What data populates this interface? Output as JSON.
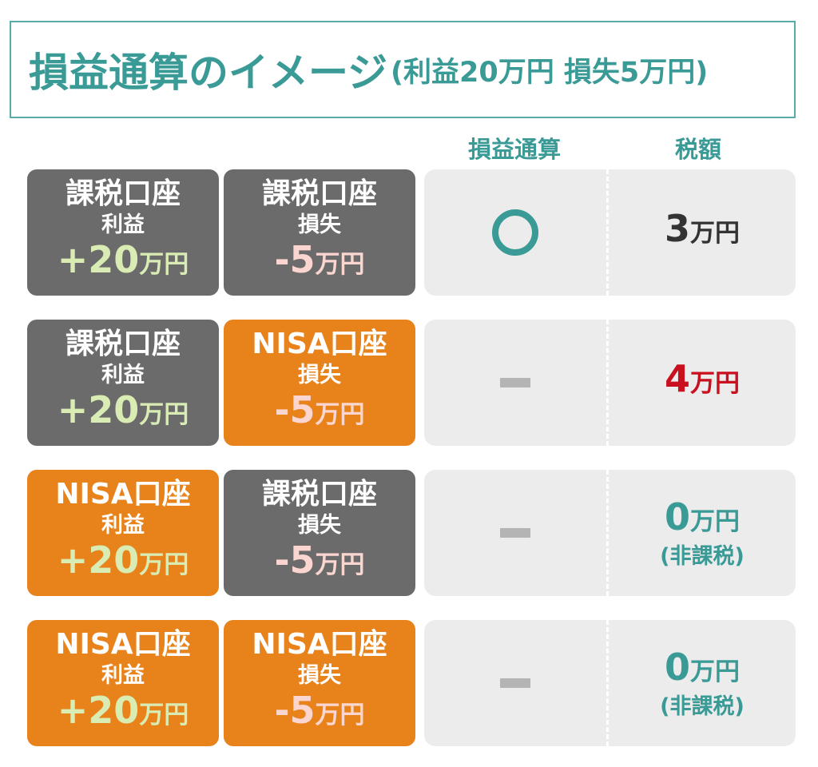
{
  "title": {
    "main": "損益通算のイメージ",
    "sub": "(利益20万円 損失5万円)"
  },
  "headers": {
    "offset": "損益通算",
    "tax": "税額"
  },
  "rows": [
    {
      "profit": {
        "account": "課税口座",
        "kind": "利益",
        "amount": "+20",
        "unit": "万円",
        "type": "taxable"
      },
      "loss": {
        "account": "課税口座",
        "kind": "損失",
        "amount": "-5",
        "unit": "万円",
        "type": "taxable"
      },
      "offset": "circle",
      "tax": {
        "amount": "3",
        "unit": "万円",
        "note": "",
        "color": "#333333"
      }
    },
    {
      "profit": {
        "account": "課税口座",
        "kind": "利益",
        "amount": "+20",
        "unit": "万円",
        "type": "taxable"
      },
      "loss": {
        "account": "NISA口座",
        "kind": "損失",
        "amount": "-5",
        "unit": "万円",
        "type": "nisa"
      },
      "offset": "dash",
      "tax": {
        "amount": "4",
        "unit": "万円",
        "note": "",
        "color": "#c8101e"
      }
    },
    {
      "profit": {
        "account": "NISA口座",
        "kind": "利益",
        "amount": "+20",
        "unit": "万円",
        "type": "nisa"
      },
      "loss": {
        "account": "課税口座",
        "kind": "損失",
        "amount": "-5",
        "unit": "万円",
        "type": "taxable"
      },
      "offset": "dash",
      "tax": {
        "amount": "0",
        "unit": "万円",
        "note": "(非課税)",
        "color": "#3a9a96"
      }
    },
    {
      "profit": {
        "account": "NISA口座",
        "kind": "利益",
        "amount": "+20",
        "unit": "万円",
        "type": "nisa"
      },
      "loss": {
        "account": "NISA口座",
        "kind": "損失",
        "amount": "-5",
        "unit": "万円",
        "type": "nisa"
      },
      "offset": "dash",
      "tax": {
        "amount": "0",
        "unit": "万円",
        "note": "(非課税)",
        "color": "#3a9a96"
      }
    }
  ],
  "colors": {
    "teal": "#3a9a96",
    "taxable_card": "#6b6b6b",
    "nisa_card": "#e8821a",
    "gain_text": "#d8ecb4",
    "loss_text": "#fbd6d0",
    "result_bg": "#ececec"
  }
}
